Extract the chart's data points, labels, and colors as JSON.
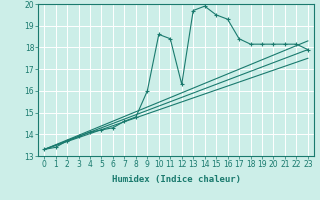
{
  "xlabel": "Humidex (Indice chaleur)",
  "ylabel": "",
  "bg_color": "#cceee8",
  "line_color": "#1a7a6e",
  "grid_color": "#ffffff",
  "xlim": [
    -0.5,
    23.5
  ],
  "ylim": [
    13,
    20
  ],
  "xticks": [
    0,
    1,
    2,
    3,
    4,
    5,
    6,
    7,
    8,
    9,
    10,
    11,
    12,
    13,
    14,
    15,
    16,
    17,
    18,
    19,
    20,
    21,
    22,
    23
  ],
  "yticks": [
    13,
    14,
    15,
    16,
    17,
    18,
    19,
    20
  ],
  "series1_x": [
    0,
    1,
    2,
    3,
    4,
    5,
    6,
    7,
    8,
    9,
    10,
    11,
    12,
    13,
    14,
    15,
    16,
    17,
    18,
    19,
    20,
    21,
    22,
    23
  ],
  "series1_y": [
    13.3,
    13.4,
    13.7,
    13.9,
    14.1,
    14.2,
    14.3,
    14.6,
    14.8,
    16.0,
    18.6,
    18.4,
    16.3,
    19.7,
    19.9,
    19.5,
    19.3,
    18.4,
    18.15,
    18.15,
    18.15,
    18.15,
    18.15,
    17.9
  ],
  "series2_x": [
    0,
    23
  ],
  "series2_y": [
    13.3,
    17.9
  ],
  "series3_x": [
    0,
    23
  ],
  "series3_y": [
    13.3,
    18.3
  ],
  "series4_x": [
    0,
    23
  ],
  "series4_y": [
    13.3,
    17.5
  ]
}
